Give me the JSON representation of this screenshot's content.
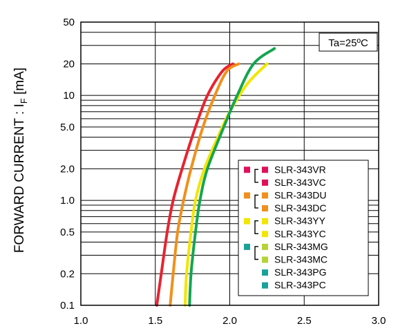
{
  "chart_data": {
    "type": "line",
    "ylabel_main": "FORWARD CURRENT : I",
    "ylabel_sub": "F",
    "ylabel_unit": " [mA]",
    "annotation": "Ta=25ºC",
    "x_scale": "linear",
    "y_scale": "log",
    "xlim": [
      1.0,
      3.0
    ],
    "ylim": [
      0.1,
      50
    ],
    "x_ticks": [
      1.0,
      1.5,
      2.0,
      2.5,
      3.0
    ],
    "x_tick_labels": [
      "1.0",
      "1.5",
      "2.0",
      "2.5",
      "3.0"
    ],
    "y_ticks": [
      0.1,
      0.2,
      0.5,
      1.0,
      2.0,
      5.0,
      10,
      20,
      50
    ],
    "y_tick_labels": [
      "0.1",
      "0.2",
      "0.5",
      "1.0",
      "2.0",
      "5.0",
      "10",
      "20",
      "50"
    ],
    "grid": true,
    "legend_position": "lower-right",
    "series": [
      {
        "color": "#e8232f",
        "points": [
          [
            1.51,
            0.1
          ],
          [
            1.54,
            0.2
          ],
          [
            1.58,
            0.5
          ],
          [
            1.62,
            1.0
          ],
          [
            1.68,
            2.0
          ],
          [
            1.77,
            5.0
          ],
          [
            1.85,
            10
          ],
          [
            1.95,
            17
          ],
          [
            2.02,
            20
          ]
        ]
      },
      {
        "color": "#f0901c",
        "points": [
          [
            1.6,
            0.1
          ],
          [
            1.62,
            0.2
          ],
          [
            1.65,
            0.5
          ],
          [
            1.69,
            1.0
          ],
          [
            1.74,
            2.0
          ],
          [
            1.82,
            5.0
          ],
          [
            1.9,
            10
          ],
          [
            1.98,
            17
          ],
          [
            2.06,
            20
          ]
        ]
      },
      {
        "color": "#f2e600",
        "points": [
          [
            1.7,
            0.1
          ],
          [
            1.71,
            0.2
          ],
          [
            1.74,
            0.5
          ],
          [
            1.77,
            1.0
          ],
          [
            1.83,
            2.0
          ],
          [
            1.92,
            4.0
          ],
          [
            2.0,
            7.0
          ],
          [
            2.12,
            13
          ],
          [
            2.25,
            20
          ]
        ]
      },
      {
        "color": "#14a550",
        "points": [
          [
            1.73,
            0.1
          ],
          [
            1.74,
            0.2
          ],
          [
            1.77,
            0.5
          ],
          [
            1.8,
            1.0
          ],
          [
            1.85,
            2.0
          ],
          [
            1.96,
            5.0
          ],
          [
            2.05,
            10
          ],
          [
            2.16,
            20
          ],
          [
            2.3,
            28
          ]
        ]
      }
    ]
  },
  "legend": {
    "items": [
      {
        "label": "SLR-343VR",
        "color": "#e0105a"
      },
      {
        "label": "SLR-343VC",
        "color": "#e0105a"
      },
      {
        "label": "SLR-343DU",
        "color": "#f0901c"
      },
      {
        "label": "SLR-343DC",
        "color": "#f0901c"
      },
      {
        "label": "SLR-343YY",
        "color": "#f2e600"
      },
      {
        "label": "SLR-343YC",
        "color": "#f2e600"
      },
      {
        "label": "SLR-343MG",
        "color": "#b5d334"
      },
      {
        "label": "SLR-343MC",
        "color": "#b5d334"
      },
      {
        "label": "SLR-343PG",
        "color": "#1aa19a"
      },
      {
        "label": "SLR-343PC",
        "color": "#1aa19a"
      }
    ],
    "groups": [
      {
        "color": "#e0105a"
      },
      {
        "color": "#f0901c"
      },
      {
        "color": "#f2e600"
      },
      {
        "color": "#1aa19a"
      }
    ]
  }
}
